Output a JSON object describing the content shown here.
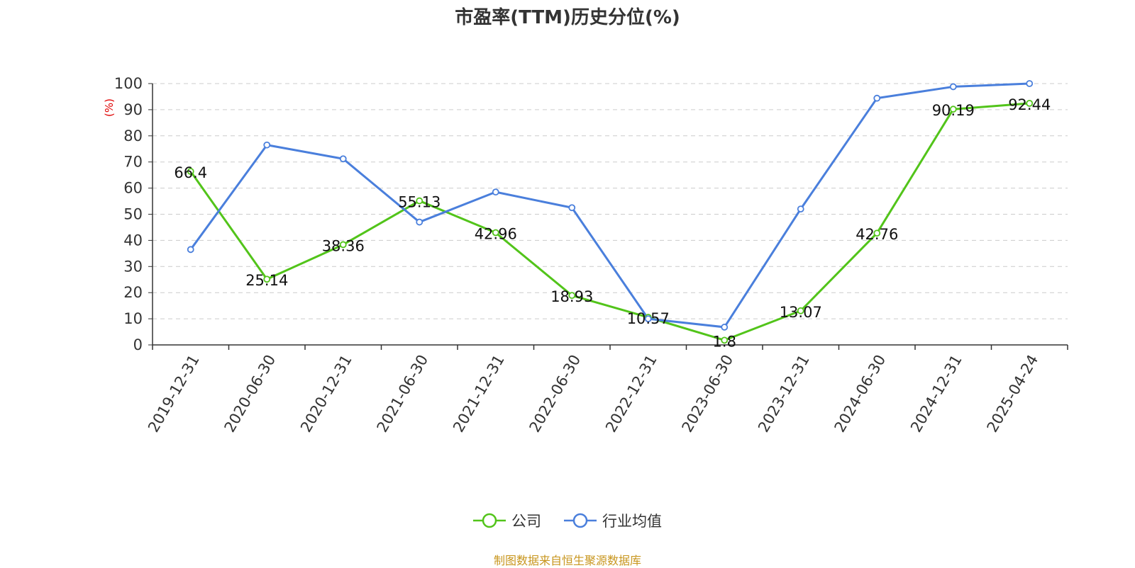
{
  "title": "市盈率(TTM)历史分位(%)",
  "source_note": "制图数据来自恒生聚源数据库",
  "chart_data": {
    "type": "line",
    "title": "市盈率(TTM)历史分位(%)",
    "ylabel": "(%)",
    "xlabel": "",
    "ylim": [
      0,
      100
    ],
    "yticks": [
      0,
      10,
      20,
      30,
      40,
      50,
      60,
      70,
      80,
      90,
      100
    ],
    "grid": true,
    "legend_position": "bottom",
    "categories": [
      "2019-12-31",
      "2020-06-30",
      "2020-12-31",
      "2021-06-30",
      "2021-12-31",
      "2022-06-30",
      "2022-12-31",
      "2023-06-30",
      "2023-12-31",
      "2024-06-30",
      "2024-12-31",
      "2025-04-24"
    ],
    "series": [
      {
        "name": "公司",
        "color": "#52c41a",
        "values": [
          66.4,
          25.14,
          38.36,
          55.13,
          42.96,
          18.93,
          10.57,
          1.8,
          13.07,
          42.76,
          90.19,
          92.44
        ],
        "labels": [
          "66.4",
          "25.14",
          "38.36",
          "55.13",
          "42.96",
          "18.93",
          "10.57",
          "1.8",
          "13.07",
          "42.76",
          "90.19",
          "92.44"
        ],
        "show_labels": true
      },
      {
        "name": "行业均值",
        "color": "#4a7fdc",
        "values": [
          36.5,
          76.5,
          71.2,
          47,
          58.5,
          52.5,
          10,
          6.8,
          52,
          94.4,
          98.8,
          100
        ],
        "show_labels": false
      }
    ]
  }
}
